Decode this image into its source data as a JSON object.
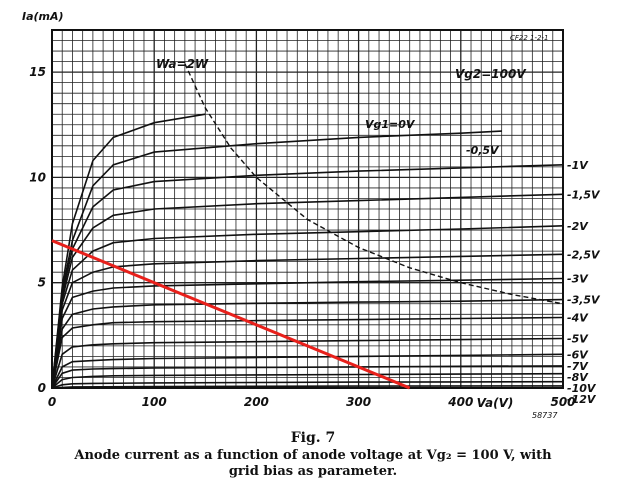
{
  "chart_data": {
    "type": "line",
    "ylabel": "Ia(mA)",
    "xlabel": "Va(V)",
    "xlim": [
      0,
      500
    ],
    "ylim": [
      0,
      17
    ],
    "x_ticks": [
      "0",
      "100",
      "200",
      "300",
      "400",
      "500"
    ],
    "y_ticks": [
      "0",
      "5",
      "10",
      "15"
    ],
    "ref_code": "CF22 1-2-1",
    "fig_code": "58737",
    "annotations": {
      "power_limit_label": "Wa=2W",
      "screen_voltage_label": "Vg2=100V"
    },
    "series": [
      {
        "name": "Vg1=0V",
        "points": [
          [
            0,
            0
          ],
          [
            10,
            4.8
          ],
          [
            20,
            7.8
          ],
          [
            40,
            10.8
          ],
          [
            60,
            11.9
          ],
          [
            100,
            12.6
          ],
          [
            150,
            13.0
          ]
        ]
      },
      {
        "name": "-0,5V",
        "points": [
          [
            0,
            0
          ],
          [
            10,
            4.6
          ],
          [
            20,
            7.0
          ],
          [
            40,
            9.6
          ],
          [
            60,
            10.6
          ],
          [
            100,
            11.2
          ],
          [
            200,
            11.6
          ],
          [
            300,
            11.9
          ],
          [
            400,
            12.1
          ],
          [
            440,
            12.2
          ]
        ]
      },
      {
        "name": "-1V",
        "points": [
          [
            0,
            0
          ],
          [
            10,
            4.4
          ],
          [
            20,
            6.6
          ],
          [
            40,
            8.6
          ],
          [
            60,
            9.4
          ],
          [
            100,
            9.8
          ],
          [
            200,
            10.1
          ],
          [
            300,
            10.3
          ],
          [
            400,
            10.45
          ],
          [
            500,
            10.6
          ]
        ]
      },
      {
        "name": "-1,5V",
        "points": [
          [
            0,
            0
          ],
          [
            10,
            4.2
          ],
          [
            20,
            6.2
          ],
          [
            40,
            7.6
          ],
          [
            60,
            8.2
          ],
          [
            100,
            8.5
          ],
          [
            200,
            8.75
          ],
          [
            300,
            8.9
          ],
          [
            400,
            9.05
          ],
          [
            500,
            9.2
          ]
        ]
      },
      {
        "name": "-2V",
        "points": [
          [
            0,
            0
          ],
          [
            10,
            4.0
          ],
          [
            20,
            5.6
          ],
          [
            40,
            6.5
          ],
          [
            60,
            6.9
          ],
          [
            100,
            7.1
          ],
          [
            200,
            7.3
          ],
          [
            300,
            7.42
          ],
          [
            400,
            7.55
          ],
          [
            500,
            7.7
          ]
        ]
      },
      {
        "name": "-2,5V",
        "points": [
          [
            0,
            0
          ],
          [
            10,
            3.7
          ],
          [
            20,
            5.0
          ],
          [
            40,
            5.5
          ],
          [
            60,
            5.75
          ],
          [
            100,
            5.9
          ],
          [
            200,
            6.05
          ],
          [
            300,
            6.15
          ],
          [
            400,
            6.25
          ],
          [
            500,
            6.35
          ]
        ]
      },
      {
        "name": "-3V",
        "points": [
          [
            0,
            0
          ],
          [
            10,
            3.3
          ],
          [
            20,
            4.3
          ],
          [
            40,
            4.6
          ],
          [
            60,
            4.75
          ],
          [
            100,
            4.85
          ],
          [
            200,
            4.95
          ],
          [
            300,
            5.05
          ],
          [
            400,
            5.12
          ],
          [
            500,
            5.2
          ]
        ]
      },
      {
        "name": "-3,5V",
        "points": [
          [
            0,
            0
          ],
          [
            10,
            2.8
          ],
          [
            20,
            3.5
          ],
          [
            40,
            3.75
          ],
          [
            60,
            3.85
          ],
          [
            100,
            3.95
          ],
          [
            200,
            4.02
          ],
          [
            300,
            4.08
          ],
          [
            400,
            4.12
          ],
          [
            500,
            4.2
          ]
        ]
      },
      {
        "name": "-4V",
        "points": [
          [
            0,
            0
          ],
          [
            10,
            2.4
          ],
          [
            20,
            2.85
          ],
          [
            40,
            3.0
          ],
          [
            60,
            3.1
          ],
          [
            100,
            3.15
          ],
          [
            200,
            3.2
          ],
          [
            300,
            3.25
          ],
          [
            400,
            3.3
          ],
          [
            500,
            3.35
          ]
        ]
      },
      {
        "name": "-5V",
        "points": [
          [
            0,
            0
          ],
          [
            10,
            1.6
          ],
          [
            20,
            1.95
          ],
          [
            40,
            2.05
          ],
          [
            60,
            2.1
          ],
          [
            100,
            2.15
          ],
          [
            200,
            2.2
          ],
          [
            300,
            2.25
          ],
          [
            400,
            2.3
          ],
          [
            500,
            2.35
          ]
        ]
      },
      {
        "name": "-6V",
        "points": [
          [
            0,
            0
          ],
          [
            10,
            1.0
          ],
          [
            20,
            1.25
          ],
          [
            40,
            1.3
          ],
          [
            60,
            1.35
          ],
          [
            100,
            1.4
          ],
          [
            200,
            1.45
          ],
          [
            300,
            1.5
          ],
          [
            400,
            1.55
          ],
          [
            500,
            1.6
          ]
        ]
      },
      {
        "name": "-7V",
        "points": [
          [
            0,
            0
          ],
          [
            10,
            0.7
          ],
          [
            20,
            0.85
          ],
          [
            40,
            0.9
          ],
          [
            60,
            0.92
          ],
          [
            100,
            0.95
          ],
          [
            200,
            0.98
          ],
          [
            300,
            1.0
          ],
          [
            400,
            1.03
          ],
          [
            500,
            1.05
          ]
        ]
      },
      {
        "name": "-8V",
        "points": [
          [
            0,
            0
          ],
          [
            10,
            0.4
          ],
          [
            20,
            0.5
          ],
          [
            40,
            0.55
          ],
          [
            60,
            0.58
          ],
          [
            100,
            0.6
          ],
          [
            200,
            0.62
          ],
          [
            300,
            0.64
          ],
          [
            400,
            0.66
          ],
          [
            500,
            0.68
          ]
        ]
      },
      {
        "name": "-10V",
        "points": [
          [
            0,
            0
          ],
          [
            10,
            0.15
          ],
          [
            20,
            0.2
          ],
          [
            40,
            0.22
          ],
          [
            100,
            0.24
          ],
          [
            200,
            0.26
          ],
          [
            300,
            0.28
          ],
          [
            400,
            0.29
          ],
          [
            500,
            0.3
          ]
        ]
      },
      {
        "name": "-12V",
        "points": [
          [
            0,
            0
          ],
          [
            20,
            0.05
          ],
          [
            100,
            0.07
          ],
          [
            300,
            0.09
          ],
          [
            500,
            0.1
          ]
        ]
      }
    ],
    "power_limit_curve": {
      "points": [
        [
          130,
          15.4
        ],
        [
          150,
          13.3
        ],
        [
          175,
          11.4
        ],
        [
          200,
          10.0
        ],
        [
          250,
          8.0
        ],
        [
          300,
          6.67
        ],
        [
          350,
          5.71
        ],
        [
          400,
          5.0
        ],
        [
          450,
          4.44
        ],
        [
          500,
          4.0
        ]
      ]
    },
    "load_line": {
      "points": [
        [
          0,
          7.0
        ],
        [
          350,
          0
        ]
      ],
      "color": "#e8201b"
    },
    "grid": true
  },
  "caption": {
    "figure": "Fig. 7",
    "text": "Anode current as a function of anode voltage at Vg₂ = 100 V, with grid bias as parameter."
  }
}
